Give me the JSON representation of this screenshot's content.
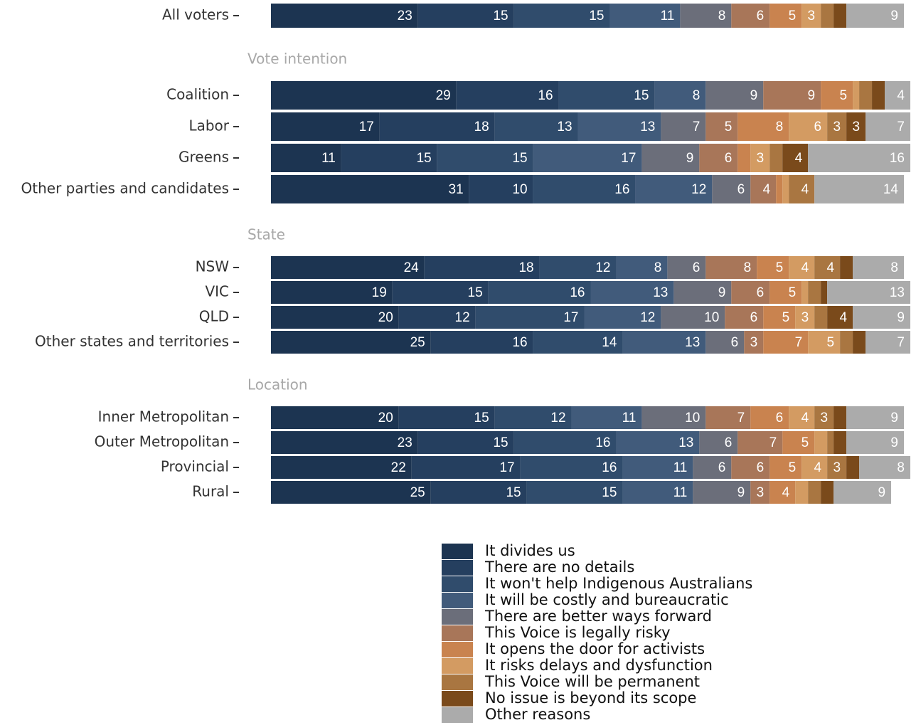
{
  "chart_data": {
    "type": "stacked_bar_horizontal",
    "categories": [
      "All voters",
      "Coalition",
      "Labor",
      "Greens",
      "Other parties and candidates",
      "NSW",
      "VIC",
      "QLD",
      "Other states and territories",
      "Inner Metropolitan",
      "Outer Metropolitan",
      "Provincial",
      "Rural"
    ],
    "category_groups": [
      null,
      "Vote intention",
      "Vote intention",
      "Vote intention",
      "Vote intention",
      "State",
      "State",
      "State",
      "State",
      "Location",
      "Location",
      "Location",
      "Location"
    ],
    "xlim": [
      0,
      100
    ],
    "series": [
      {
        "name": "It divides us",
        "color": "#1c3451",
        "values": [
          23,
          29,
          17,
          11,
          31,
          24,
          19,
          20,
          25,
          20,
          23,
          22,
          25
        ]
      },
      {
        "name": "There are no details",
        "color": "#253f5f",
        "values": [
          15,
          16,
          18,
          15,
          10,
          18,
          15,
          12,
          16,
          15,
          15,
          17,
          15
        ]
      },
      {
        "name": "It won't help Indigenous Australians",
        "color": "#304c6c",
        "values": [
          15,
          15,
          13,
          15,
          16,
          12,
          16,
          17,
          14,
          12,
          16,
          16,
          15
        ]
      },
      {
        "name": "It will be costly and bureaucratic",
        "color": "#415b7b",
        "values": [
          11,
          8,
          13,
          17,
          12,
          8,
          13,
          12,
          13,
          11,
          13,
          11,
          11
        ]
      },
      {
        "name": "There are better ways forward",
        "color": "#6b6e7a",
        "values": [
          8,
          9,
          7,
          9,
          6,
          6,
          9,
          10,
          6,
          10,
          6,
          6,
          9
        ]
      },
      {
        "name": "This Voice is legally risky",
        "color": "#a87659",
        "values": [
          6,
          9,
          5,
          6,
          4,
          8,
          6,
          6,
          3,
          7,
          7,
          6,
          3
        ]
      },
      {
        "name": "It opens the door for activists",
        "color": "#c9834f",
        "values": [
          5,
          5,
          8,
          2,
          1,
          5,
          5,
          5,
          7,
          6,
          5,
          5,
          4
        ]
      },
      {
        "name": "It risks delays and dysfunction",
        "color": "#d39b62",
        "values": [
          3,
          1,
          6,
          3,
          1,
          4,
          1,
          3,
          5,
          4,
          2,
          4,
          2
        ]
      },
      {
        "name": "This Voice will be permanent",
        "color": "#a97641",
        "values": [
          2,
          2,
          3,
          2,
          4,
          4,
          2,
          2,
          2,
          3,
          1,
          3,
          2
        ]
      },
      {
        "name": "No issue is beyond its scope",
        "color": "#7a4a1b",
        "values": [
          2,
          2,
          3,
          4,
          0,
          2,
          1,
          4,
          2,
          2,
          2,
          2,
          2
        ]
      },
      {
        "name": "Other reasons",
        "color": "#ababab",
        "values": [
          9,
          4,
          7,
          16,
          14,
          8,
          13,
          9,
          7,
          9,
          9,
          8,
          9
        ]
      }
    ]
  }
}
